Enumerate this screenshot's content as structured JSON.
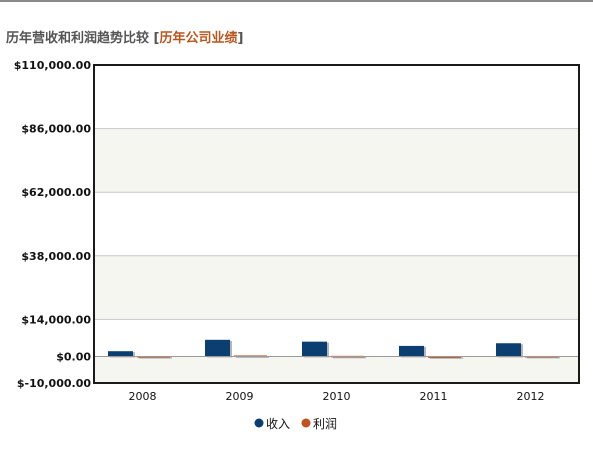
{
  "header": {
    "title": "历年营收和利润趋势比较",
    "bracket_open": "[",
    "link": "历年公司业绩",
    "bracket_close": "]"
  },
  "chart_data": {
    "type": "bar",
    "categories": [
      "2008",
      "2009",
      "2010",
      "2011",
      "2012"
    ],
    "series": [
      {
        "name": "收入",
        "values": [
          2000,
          6300,
          5600,
          4000,
          5000
        ],
        "color": "#0b3f72"
      },
      {
        "name": "利润",
        "values": [
          150,
          400,
          250,
          60,
          200
        ],
        "color": "#c0501f"
      }
    ],
    "y_ticks": [
      {
        "value": 110000,
        "label": "$110,000.00"
      },
      {
        "value": 86000,
        "label": "$86,000.00"
      },
      {
        "value": 62000,
        "label": "$62,000.00"
      },
      {
        "value": 38000,
        "label": "$38,000.00"
      },
      {
        "value": 14000,
        "label": "$14,000.00"
      },
      {
        "value": 0,
        "label": "$0.00"
      },
      {
        "value": -10000,
        "label": "$-10,000.00"
      }
    ],
    "ylim": [
      -10000,
      110000
    ],
    "legend_position": "bottom-center",
    "grid": true
  }
}
